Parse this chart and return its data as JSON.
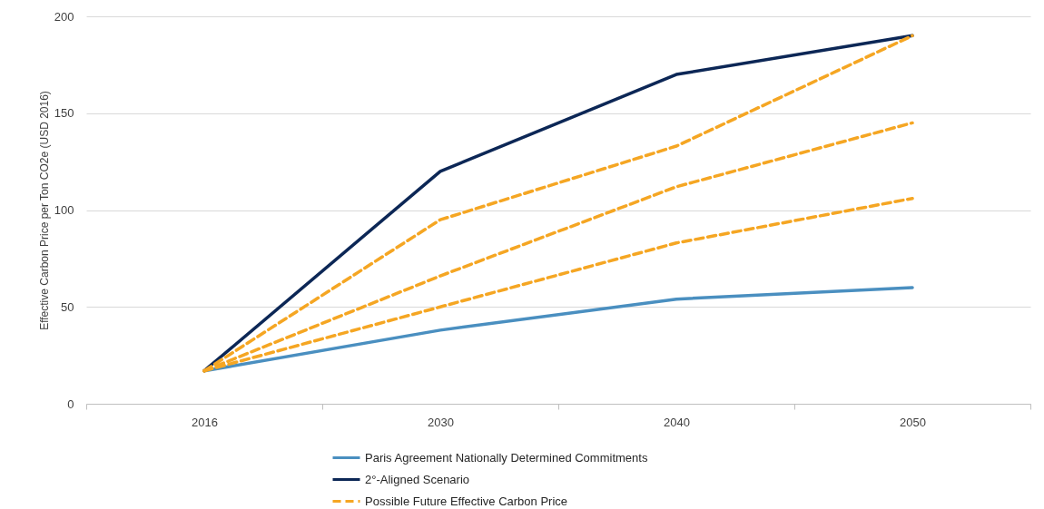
{
  "chart_data": {
    "type": "line",
    "ylabel": "Effective Carbon Price per Ton CO2e (USD 2016)",
    "categories": [
      "2016",
      "2030",
      "2040",
      "2050"
    ],
    "series": [
      {
        "name": "Paris Agreement Nationally Determined Commitments",
        "color": "#4a8fc0",
        "values": [
          17,
          38,
          54,
          60
        ],
        "line_style": "solid"
      },
      {
        "name": "2°-Aligned Scenario",
        "color": "#0c2756",
        "values": [
          17,
          120,
          170,
          190
        ],
        "line_style": "solid"
      },
      {
        "name": "Possible Future Effective Carbon Price",
        "color": "#f5a623",
        "values": [
          17,
          95,
          133,
          190
        ],
        "line_style": "dashed"
      },
      {
        "color": "#f5a623",
        "values": [
          17,
          66,
          112,
          145
        ],
        "line_style": "dashed"
      },
      {
        "color": "#f5a623",
        "values": [
          17,
          50,
          83,
          106
        ],
        "line_style": "dashed"
      }
    ],
    "ylim": [
      0,
      200
    ],
    "yticks": [
      0,
      50,
      100,
      150,
      200
    ],
    "grid": "y",
    "legend": "bottom"
  }
}
